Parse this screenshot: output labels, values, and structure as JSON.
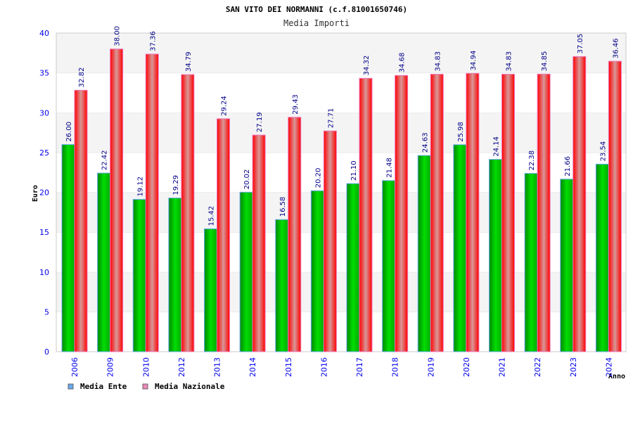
{
  "chart_data": {
    "type": "bar",
    "title": "SAN VITO DEI NORMANNI (c.f.81001650746)",
    "subtitle": "Media Importi",
    "xlabel": "Anno",
    "ylabel": "Euro",
    "ylim": [
      0,
      40
    ],
    "yticks": [
      0,
      5,
      10,
      15,
      20,
      25,
      30,
      35,
      40
    ],
    "grid": true,
    "legend_position": "bottom-left",
    "categories": [
      "2006",
      "2009",
      "2010",
      "2012",
      "2013",
      "2014",
      "2015",
      "2016",
      "2017",
      "2018",
      "2019",
      "2020",
      "2021",
      "2022",
      "2023",
      "2024"
    ],
    "series": [
      {
        "name": "Media Ente",
        "color": "#00cc00",
        "legend_color": "#66aaee",
        "values": [
          26.0,
          22.42,
          19.12,
          19.29,
          15.42,
          20.02,
          16.58,
          20.2,
          21.1,
          21.48,
          24.63,
          25.98,
          24.14,
          22.38,
          21.66,
          23.54
        ]
      },
      {
        "name": "Media Nazionale",
        "color": "#ff0000",
        "legend_color": "#ee88bb",
        "values": [
          32.82,
          38.0,
          37.36,
          34.79,
          29.24,
          27.19,
          29.43,
          27.71,
          34.32,
          34.68,
          34.83,
          34.94,
          34.83,
          34.85,
          37.05,
          36.46
        ]
      }
    ]
  }
}
